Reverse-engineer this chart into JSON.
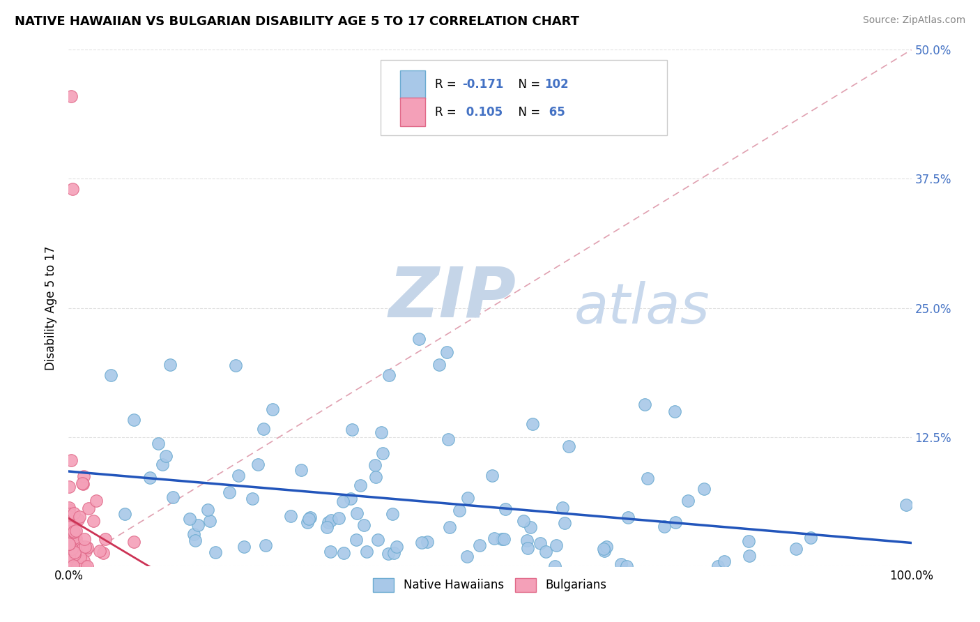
{
  "title": "NATIVE HAWAIIAN VS BULGARIAN DISABILITY AGE 5 TO 17 CORRELATION CHART",
  "source_text": "Source: ZipAtlas.com",
  "ylabel": "Disability Age 5 to 17",
  "xlim": [
    0,
    1.0
  ],
  "ylim": [
    0,
    0.5
  ],
  "xticks": [
    0.0,
    0.25,
    0.5,
    0.75,
    1.0
  ],
  "xticklabels_show": [
    "0.0%",
    "",
    "",
    "",
    "100.0%"
  ],
  "yticks": [
    0.0,
    0.125,
    0.25,
    0.375,
    0.5
  ],
  "yticklabels_right": [
    "",
    "12.5%",
    "25.0%",
    "37.5%",
    "50.0%"
  ],
  "native_hawaiian_color": "#a8c8e8",
  "bulgarian_color": "#f4a0b8",
  "native_hawaiian_edge": "#6aaad0",
  "bulgarian_edge": "#e06888",
  "trendline_native_color": "#2255bb",
  "trendline_bulgarian_color": "#cc3355",
  "reference_line_color": "#e0a0b0",
  "watermark_zip_color": "#c8d8ec",
  "watermark_atlas_color": "#c8d8ec",
  "r_native": -0.171,
  "n_native": 102,
  "r_bulgarian": 0.105,
  "n_bulgarian": 65,
  "background_color": "#ffffff",
  "grid_color": "#e0e0e0",
  "legend_blue_color": "#4472c4",
  "legend_pink_color": "#e06080"
}
